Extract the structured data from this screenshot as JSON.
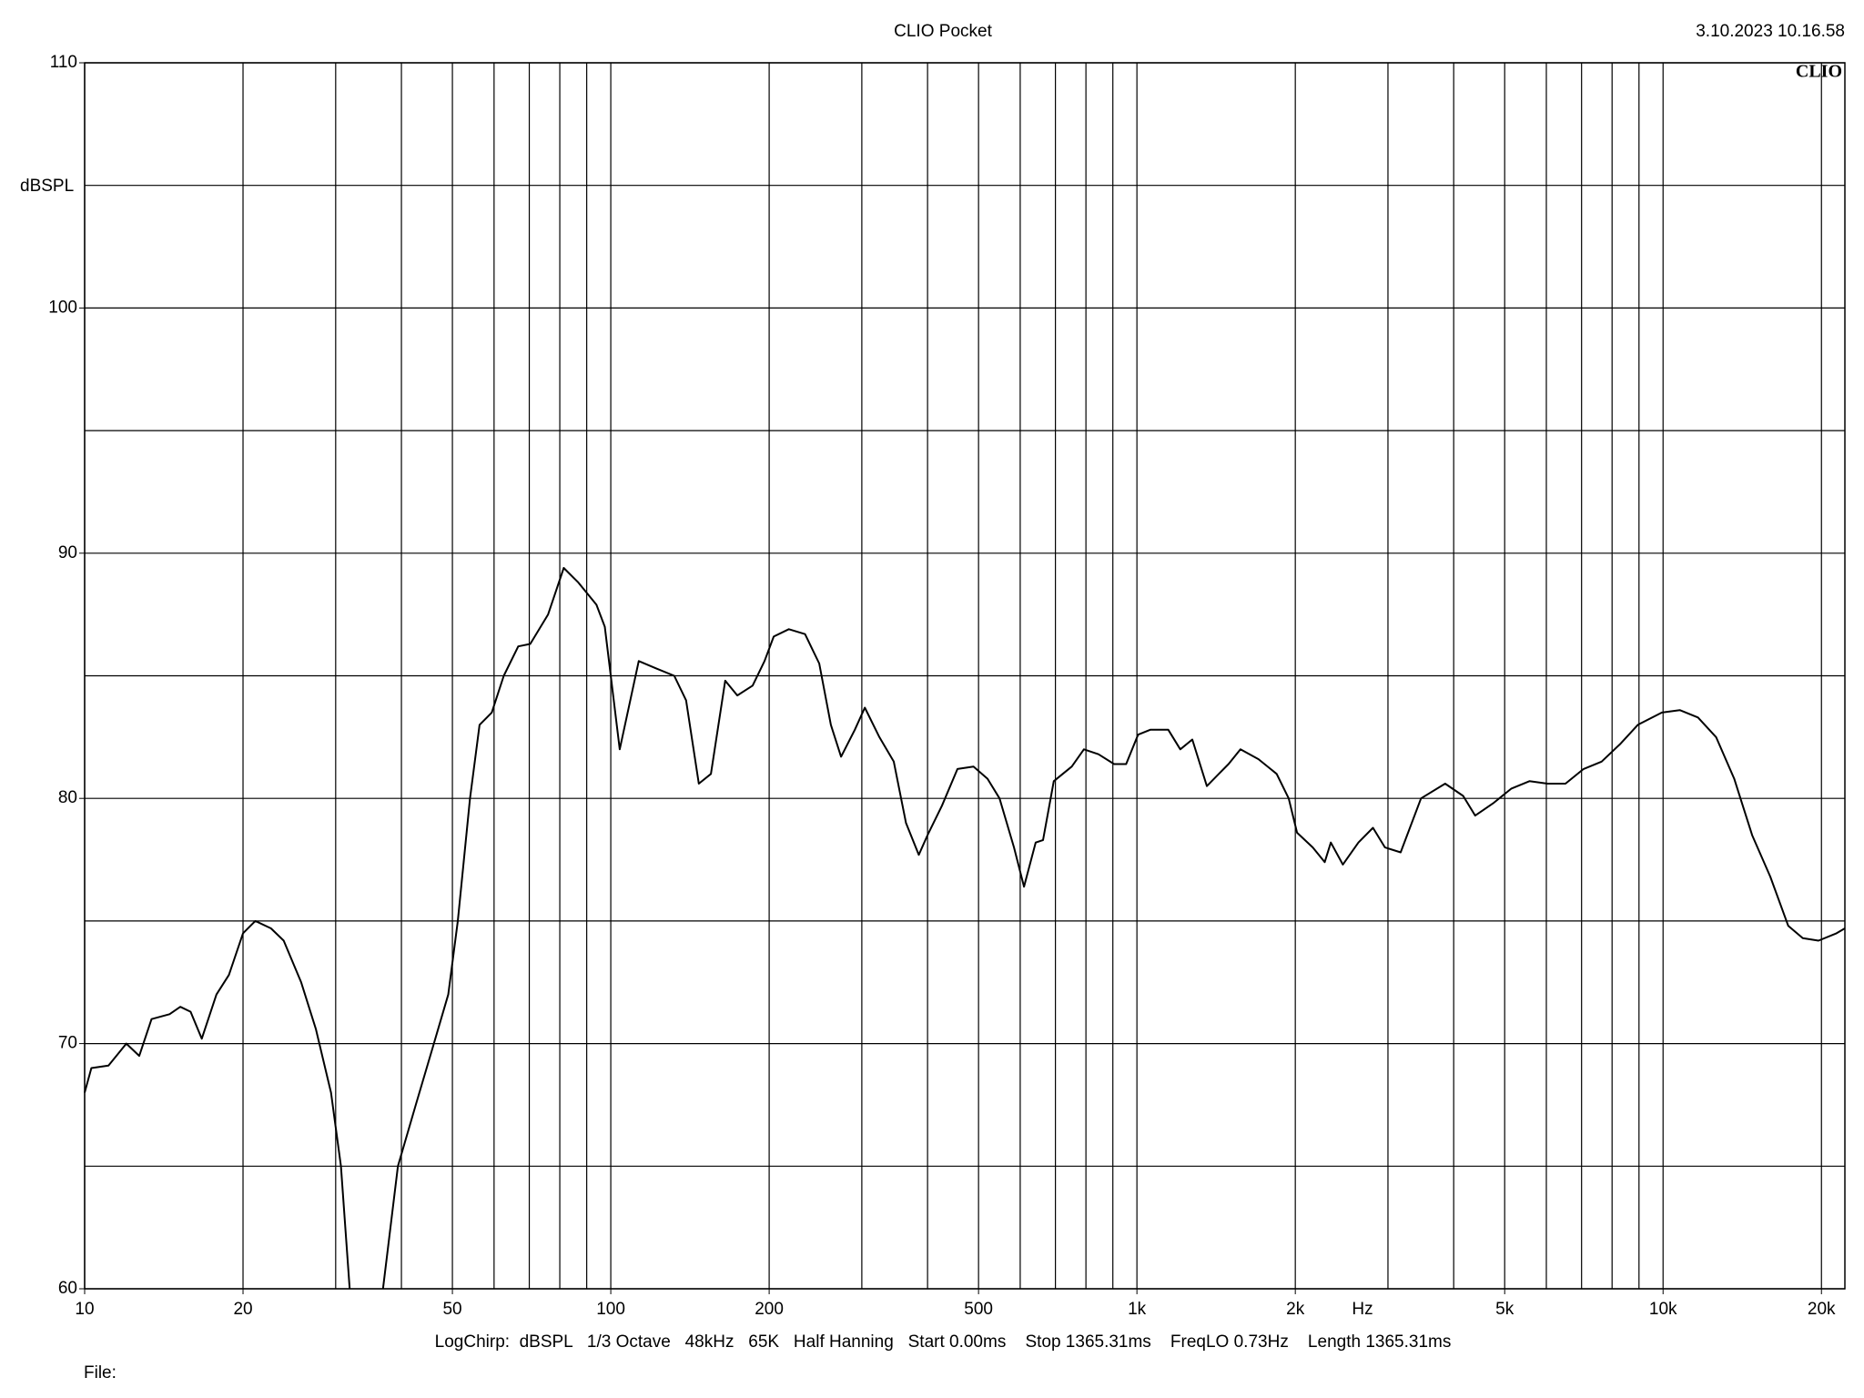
{
  "chart_data": {
    "type": "line",
    "title": "CLIO Pocket",
    "timestamp": "3.10.2023 10.16.58",
    "logo": "CLIO",
    "y_label": "dBSPL",
    "x_label": "Hz",
    "footer": "LogChirp:  dBSPL   1/3 Octave   48kHz   65K   Half Hanning   Start 0.00ms    Stop 1365.31ms    FreqLO 0.73Hz    Length 1365.31ms",
    "file_label": "File:",
    "xscale": "log",
    "xlim": [
      10,
      22160
    ],
    "ylim": [
      60,
      110
    ],
    "xticks": [
      10,
      20,
      50,
      100,
      200,
      500,
      {
        "value": 1000,
        "label": "1k"
      },
      {
        "value": 2000,
        "label": "2k"
      },
      {
        "value": 5000,
        "label": "5k"
      },
      {
        "value": 10000,
        "label": "10k"
      },
      {
        "value": 20000,
        "label": "20k"
      }
    ],
    "yticks": [
      60,
      70,
      80,
      90,
      100,
      110
    ],
    "xgrid": [
      10,
      20,
      30,
      40,
      50,
      60,
      70,
      80,
      90,
      100,
      200,
      300,
      400,
      500,
      600,
      700,
      800,
      900,
      1000,
      2000,
      3000,
      4000,
      5000,
      6000,
      7000,
      8000,
      9000,
      10000,
      20000
    ],
    "ygrid": [
      60,
      65,
      70,
      75,
      80,
      85,
      90,
      95,
      100,
      105,
      110
    ],
    "grid": true,
    "color": "#000000",
    "x": [
      10,
      10.3,
      11.1,
      12.0,
      12.7,
      13.4,
      14.5,
      15.2,
      15.9,
      16.7,
      17.8,
      18.8,
      20.0,
      21.1,
      22.6,
      23.9,
      25.8,
      27.5,
      29.4,
      30.7,
      31.9,
      null,
      36.9,
      39.4,
      42.6,
      46.1,
      49.1,
      51.2,
      54.0,
      56.3,
      59.4,
      62.6,
      66.7,
      70.3,
      76.0,
      81.4,
      86.8,
      93.9,
      97.4,
      104,
      113,
      122,
      132,
      139,
      147,
      155,
      165,
      174,
      186,
      196,
      204,
      218,
      234,
      249,
      262,
      274,
      291,
      304,
      324,
      345,
      364,
      385,
      400,
      426,
      456,
      489,
      520,
      548,
      584,
      610,
      642,
      663,
      695,
      752,
      793,
      845,
      905,
      954,
      1005,
      1060,
      1147,
      1209,
      1274,
      1358,
      1431,
      1493,
      1573,
      1702,
      1843,
      1943,
      2015,
      2159,
      2275,
      2336,
      2462,
      2636,
      2809,
      2961,
      3171,
      3467,
      3853,
      4170,
      4395,
      4754,
      5150,
      5572,
      6031,
      6525,
      7063,
      7641,
      8274,
      8954,
      9947,
      10760,
      11650,
      12610,
      13650,
      14770,
      15990,
      17300,
      18430,
      19740,
      21360,
      22160
    ],
    "values": [
      68,
      69,
      69.1,
      70,
      69.5,
      71,
      71.2,
      71.5,
      71.3,
      70.2,
      72,
      72.8,
      74.5,
      75,
      74.7,
      74.2,
      72.5,
      70.6,
      68,
      65,
      60,
      null,
      60,
      65,
      67.5,
      70,
      72,
      75,
      80,
      83,
      83.5,
      85,
      86.2,
      86.3,
      87.5,
      89.4,
      88.8,
      87.9,
      87,
      82,
      85.6,
      85.3,
      85,
      84,
      80.6,
      81,
      84.8,
      84.2,
      84.6,
      85.6,
      86.6,
      86.9,
      86.7,
      85.5,
      83,
      81.7,
      82.8,
      83.7,
      82.5,
      81.5,
      79,
      77.7,
      78.5,
      79.7,
      81.2,
      81.3,
      80.8,
      80,
      78,
      76.4,
      78.2,
      78.3,
      80.7,
      81.3,
      82,
      81.8,
      81.4,
      81.4,
      82.6,
      82.8,
      82.8,
      82,
      82.4,
      80.5,
      81,
      81.4,
      82,
      81.6,
      81,
      80,
      78.6,
      78,
      77.4,
      78.2,
      77.3,
      78.2,
      78.8,
      78,
      77.8,
      80,
      80.6,
      80.1,
      79.3,
      79.8,
      80.4,
      80.7,
      80.6,
      80.6,
      81.2,
      81.5,
      82.2,
      83,
      83.5,
      83.6,
      83.3,
      82.5,
      80.8,
      78.5,
      76.8,
      74.8,
      74.3,
      74.2,
      74.5,
      74.7
    ]
  }
}
